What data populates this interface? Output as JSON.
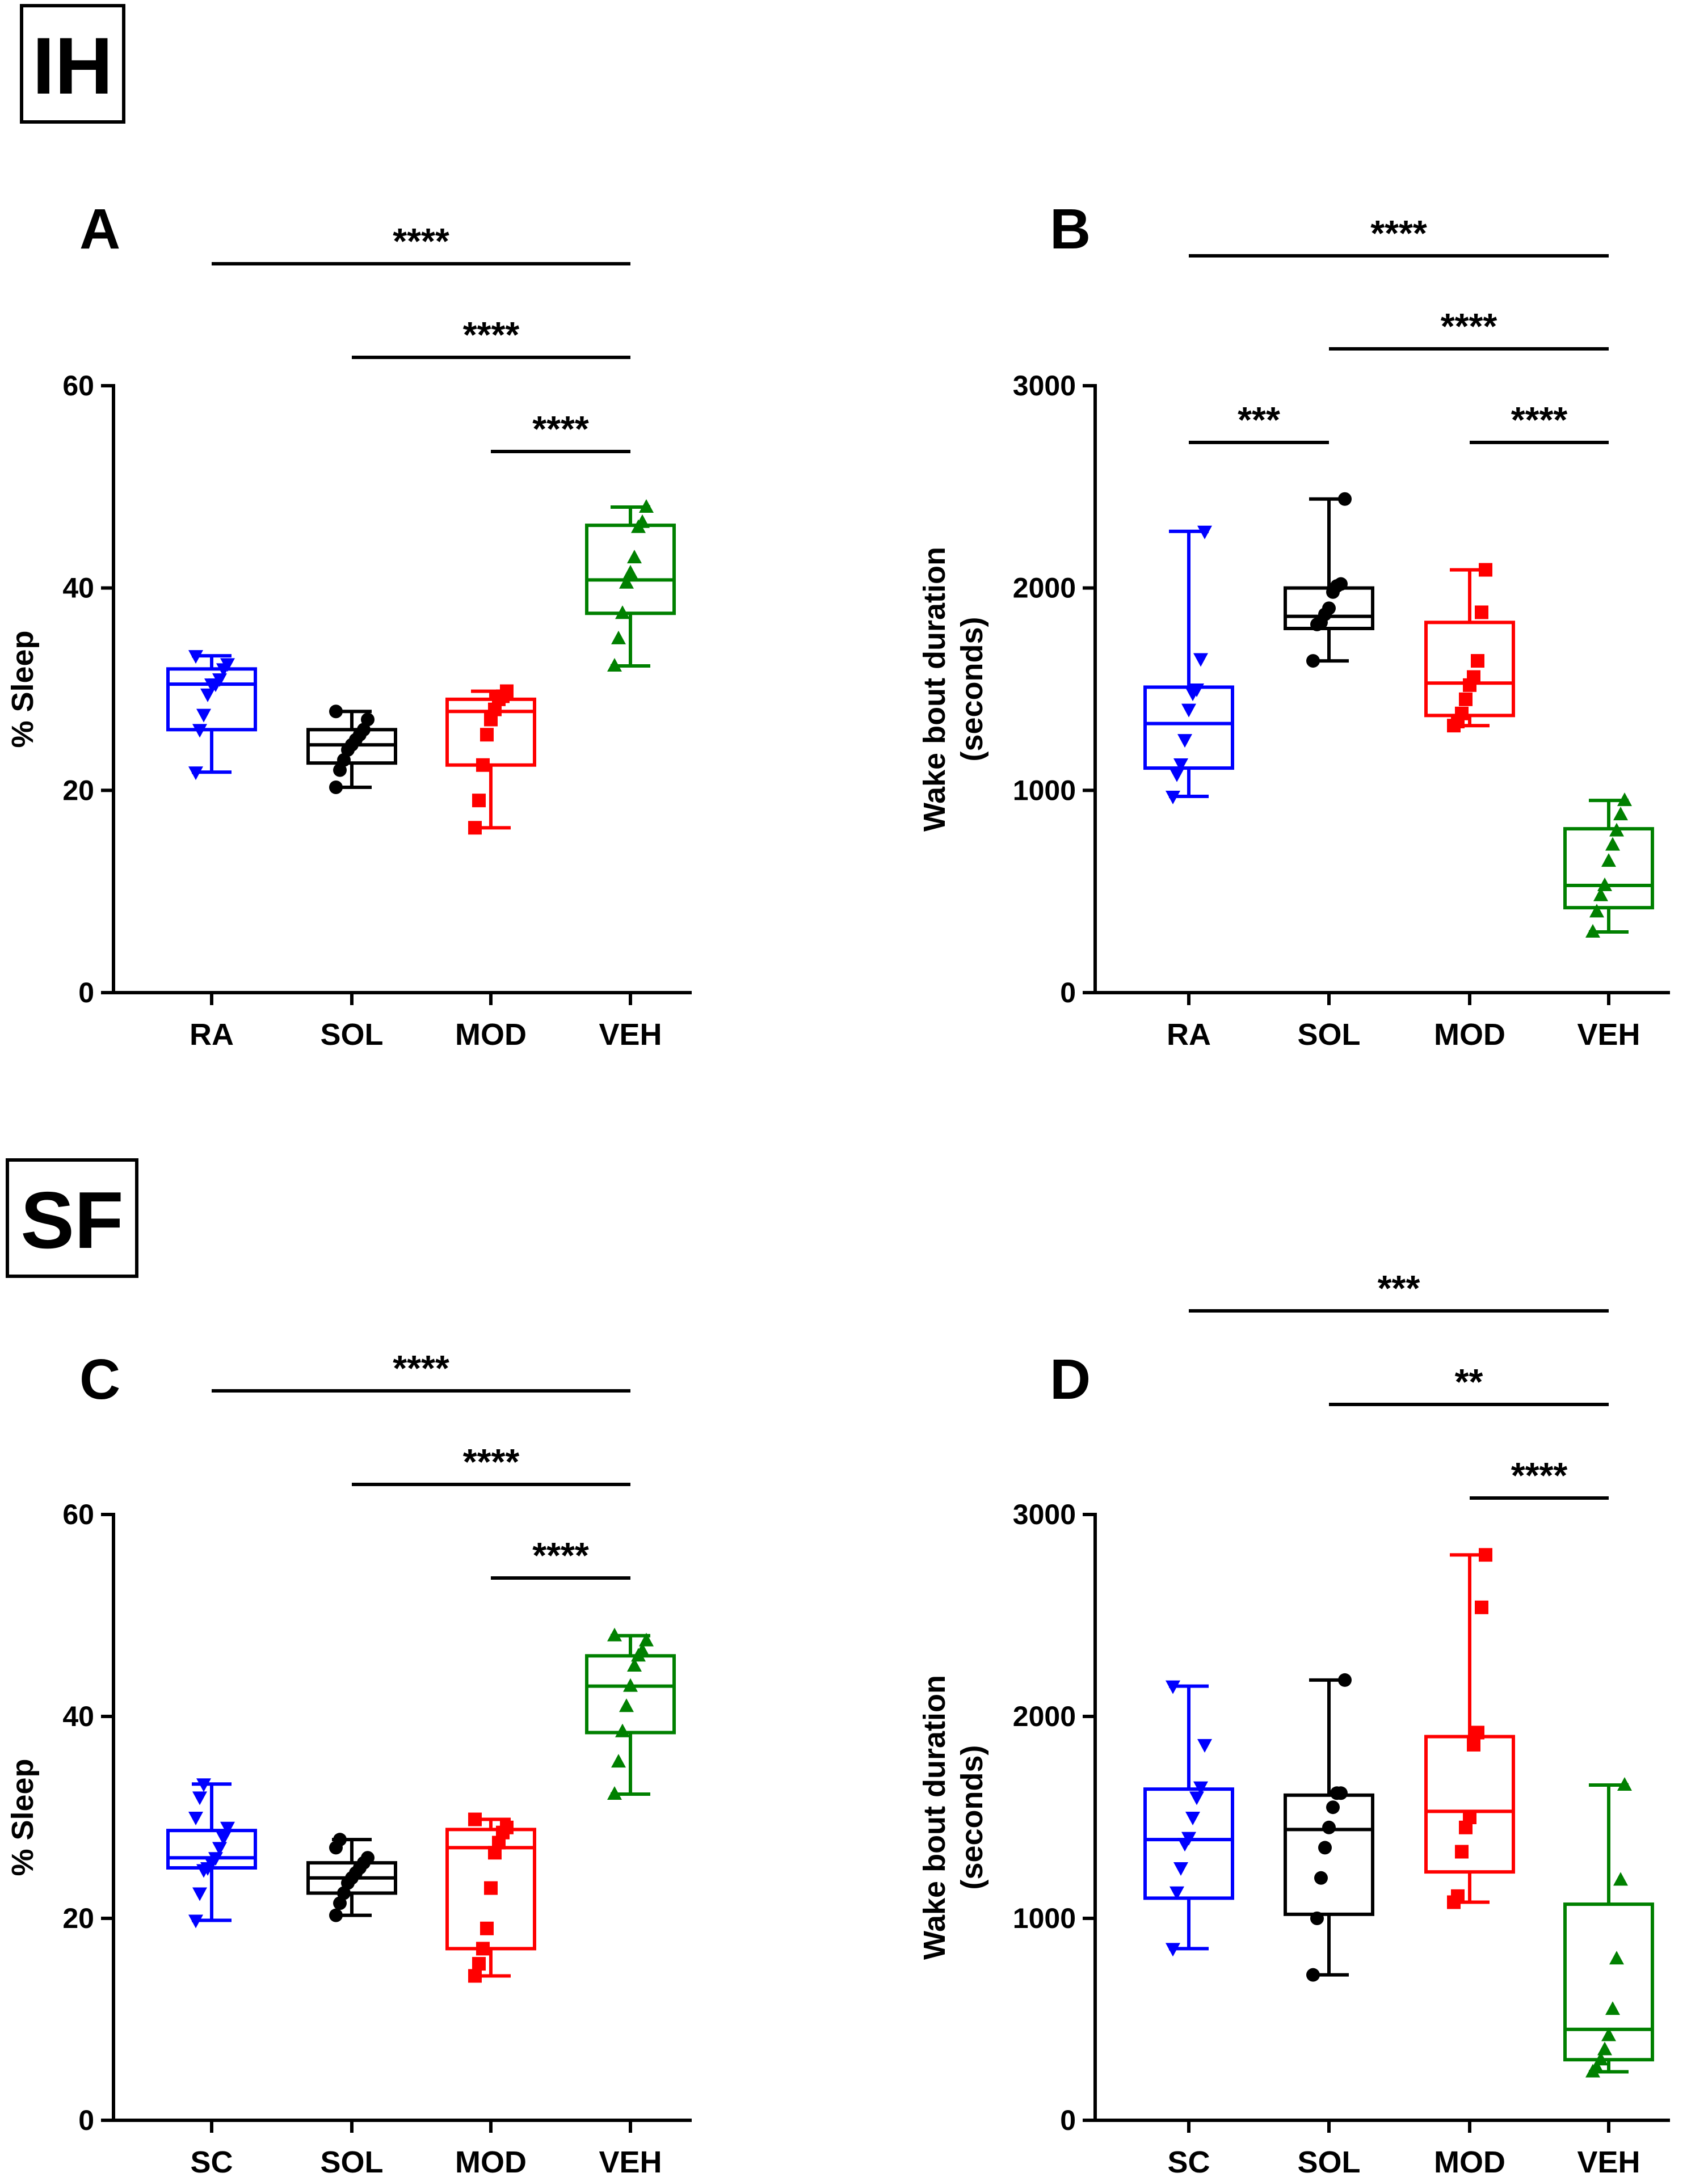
{
  "sections": [
    {
      "label": "IH",
      "panels": [
        "A",
        "B"
      ]
    },
    {
      "label": "SF",
      "panels": [
        "C",
        "D"
      ]
    }
  ],
  "group_colors": {
    "RA": "#0000ff",
    "SC": "#0000ff",
    "SOL": "#000000",
    "MOD": "#ff0000",
    "VEH": "#008000"
  },
  "group_markers": {
    "RA": "triangle-down",
    "SC": "triangle-down",
    "SOL": "circle",
    "MOD": "square",
    "VEH": "triangle-up"
  },
  "chart_data": [
    {
      "panel": "A",
      "section": "IH",
      "type": "box",
      "ylabel": [
        "% Sleep"
      ],
      "ylim": [
        0,
        60
      ],
      "yticks": [
        0,
        20,
        40,
        60
      ],
      "categories": [
        "RA",
        "SOL",
        "MOD",
        "VEH"
      ],
      "boxes": [
        {
          "min": 21.8,
          "q1": 26.0,
          "median": 30.5,
          "q3": 32.0,
          "max": 33.3,
          "points": [
            21.8,
            26.0,
            27.5,
            29.5,
            30.5,
            30.5,
            31.0,
            32.0,
            32.5,
            33.3
          ]
        },
        {
          "min": 20.3,
          "q1": 22.7,
          "median": 24.5,
          "q3": 26.0,
          "max": 27.8,
          "points": [
            20.3,
            22.0,
            23.0,
            24.0,
            24.5,
            25.0,
            25.5,
            26.0,
            27.0,
            27.8
          ]
        },
        {
          "min": 16.3,
          "q1": 22.5,
          "median": 27.8,
          "q3": 29.0,
          "max": 29.8,
          "points": [
            16.3,
            19.0,
            22.5,
            25.5,
            27.0,
            28.0,
            29.0,
            29.3,
            29.8
          ]
        },
        {
          "min": 32.3,
          "q1": 37.5,
          "median": 40.8,
          "q3": 46.2,
          "max": 48.0,
          "points": [
            32.3,
            35.0,
            37.5,
            40.5,
            41.5,
            43.0,
            46.0,
            46.5,
            48.0
          ]
        }
      ],
      "significance": [
        {
          "from": "RA",
          "to": "VEH",
          "label": "****"
        },
        {
          "from": "SOL",
          "to": "VEH",
          "label": "****"
        },
        {
          "from": "MOD",
          "to": "VEH",
          "label": "****"
        }
      ]
    },
    {
      "panel": "B",
      "section": "IH",
      "type": "box",
      "ylabel": [
        "Wake bout duration",
        "(seconds)"
      ],
      "ylim": [
        0,
        3000
      ],
      "yticks": [
        0,
        1000,
        2000,
        3000
      ],
      "categories": [
        "RA",
        "SOL",
        "MOD",
        "VEH"
      ],
      "boxes": [
        {
          "min": 970,
          "q1": 1110,
          "median": 1330,
          "q3": 1510,
          "max": 2280,
          "points": [
            970,
            1080,
            1130,
            1250,
            1400,
            1480,
            1500,
            1650,
            2280
          ]
        },
        {
          "min": 1640,
          "q1": 1800,
          "median": 1860,
          "q3": 2000,
          "max": 2440,
          "points": [
            1640,
            1820,
            1830,
            1870,
            1900,
            1980,
            2010,
            2020,
            2440
          ]
        },
        {
          "min": 1320,
          "q1": 1370,
          "median": 1530,
          "q3": 1830,
          "max": 2090,
          "points": [
            1320,
            1340,
            1380,
            1450,
            1520,
            1560,
            1640,
            1880,
            2090
          ]
        },
        {
          "min": 300,
          "q1": 420,
          "median": 530,
          "q3": 810,
          "max": 950,
          "points": [
            300,
            400,
            480,
            530,
            650,
            730,
            800,
            880,
            950
          ]
        }
      ],
      "significance": [
        {
          "from": "RA",
          "to": "VEH",
          "label": "****"
        },
        {
          "from": "SOL",
          "to": "VEH",
          "label": "****"
        },
        {
          "from": "RA",
          "to": "SOL",
          "label": "***"
        },
        {
          "from": "MOD",
          "to": "VEH",
          "label": "****"
        }
      ]
    },
    {
      "panel": "C",
      "section": "SF",
      "type": "box",
      "ylabel": [
        "% Sleep"
      ],
      "ylim": [
        0,
        60
      ],
      "yticks": [
        0,
        20,
        40,
        60
      ],
      "categories": [
        "SC",
        "SOL",
        "MOD",
        "VEH"
      ],
      "boxes": [
        {
          "min": 19.8,
          "q1": 25.0,
          "median": 26.0,
          "q3": 28.7,
          "max": 33.3,
          "points": [
            19.8,
            22.5,
            24.8,
            25.0,
            25.5,
            26.0,
            27.0,
            28.0,
            29.0,
            30.0,
            32.0,
            33.3
          ]
        },
        {
          "min": 20.3,
          "q1": 22.5,
          "median": 24.0,
          "q3": 25.5,
          "max": 27.8,
          "points": [
            20.3,
            21.5,
            22.5,
            23.5,
            24.0,
            24.5,
            25.0,
            25.5,
            26.0,
            27.0,
            27.8
          ]
        },
        {
          "min": 14.3,
          "q1": 17.0,
          "median": 27.0,
          "q3": 28.8,
          "max": 29.8,
          "points": [
            14.3,
            15.5,
            17.0,
            19.0,
            23.0,
            26.5,
            27.5,
            28.5,
            29.0,
            29.8
          ]
        },
        {
          "min": 32.3,
          "q1": 38.4,
          "median": 43.0,
          "q3": 46.0,
          "max": 48.0,
          "points": [
            32.3,
            35.5,
            38.5,
            41.0,
            43.0,
            45.0,
            46.0,
            46.5,
            47.5,
            48.0
          ]
        }
      ],
      "significance": [
        {
          "from": "SC",
          "to": "VEH",
          "label": "****"
        },
        {
          "from": "SOL",
          "to": "VEH",
          "label": "****"
        },
        {
          "from": "MOD",
          "to": "VEH",
          "label": "****"
        }
      ]
    },
    {
      "panel": "D",
      "section": "SF",
      "type": "box",
      "ylabel": [
        "Wake bout duration",
        "(seconds)"
      ],
      "ylim": [
        0,
        3000
      ],
      "yticks": [
        0,
        1000,
        2000,
        3000
      ],
      "categories": [
        "SC",
        "SOL",
        "MOD",
        "VEH"
      ],
      "boxes": [
        {
          "min": 850,
          "q1": 1100,
          "median": 1390,
          "q3": 1640,
          "max": 2150,
          "points": [
            850,
            1130,
            1250,
            1370,
            1400,
            1500,
            1600,
            1650,
            1860,
            2150
          ]
        },
        {
          "min": 720,
          "q1": 1020,
          "median": 1440,
          "q3": 1610,
          "max": 2180,
          "points": [
            720,
            1000,
            1200,
            1350,
            1450,
            1550,
            1620,
            1620,
            2180
          ]
        },
        {
          "min": 1080,
          "q1": 1230,
          "median": 1530,
          "q3": 1900,
          "max": 2800,
          "points": [
            1080,
            1110,
            1330,
            1450,
            1500,
            1860,
            1920,
            2540,
            2800
          ]
        },
        {
          "min": 240,
          "q1": 300,
          "median": 450,
          "q3": 1070,
          "max": 1660,
          "points": [
            240,
            260,
            300,
            350,
            420,
            550,
            800,
            1190,
            1660
          ]
        }
      ],
      "significance": [
        {
          "from": "SC",
          "to": "VEH",
          "label": "***"
        },
        {
          "from": "SOL",
          "to": "VEH",
          "label": "**"
        },
        {
          "from": "MOD",
          "to": "VEH",
          "label": "****"
        }
      ]
    }
  ]
}
